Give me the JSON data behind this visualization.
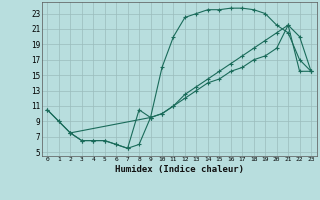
{
  "xlabel": "Humidex (Indice chaleur)",
  "bg_color": "#b8dede",
  "grid_color": "#9bbcbc",
  "line_color": "#1a6b5a",
  "xlim": [
    -0.5,
    23.5
  ],
  "ylim": [
    4.5,
    24.5
  ],
  "xticks": [
    0,
    1,
    2,
    3,
    4,
    5,
    6,
    7,
    8,
    9,
    10,
    11,
    12,
    13,
    14,
    15,
    16,
    17,
    18,
    19,
    20,
    21,
    22,
    23
  ],
  "yticks": [
    5,
    7,
    9,
    11,
    13,
    15,
    17,
    19,
    21,
    23
  ],
  "curve1_x": [
    0,
    1,
    2,
    3,
    4,
    5,
    6,
    7,
    8,
    9,
    10,
    11,
    12,
    13,
    14,
    15,
    16,
    17,
    18,
    19,
    20,
    21,
    22,
    23
  ],
  "curve1_y": [
    10.5,
    9,
    7.5,
    6.5,
    6.5,
    6.5,
    6,
    5.5,
    10.5,
    9.5,
    16,
    20,
    22.5,
    23,
    23.5,
    23.5,
    23.7,
    23.7,
    23.5,
    23,
    21.5,
    20.5,
    17,
    15.5
  ],
  "curve2_x": [
    0,
    1,
    2,
    3,
    4,
    5,
    6,
    7,
    8,
    9,
    10,
    11,
    12,
    13,
    14,
    15,
    16,
    17,
    18,
    19,
    20,
    21,
    22,
    23
  ],
  "curve2_y": [
    10.5,
    9,
    7.5,
    6.5,
    6.5,
    6.5,
    6,
    5.5,
    6,
    9.5,
    10,
    11,
    12.5,
    13.5,
    14.5,
    15.5,
    16.5,
    17.5,
    18.5,
    19.5,
    20.5,
    21.5,
    15.5,
    15.5
  ],
  "curve3_x": [
    2,
    9,
    10,
    11,
    12,
    13,
    14,
    15,
    16,
    17,
    18,
    19,
    20,
    21,
    22,
    23
  ],
  "curve3_y": [
    7.5,
    9.5,
    10,
    11,
    12,
    13,
    14,
    14.5,
    15.5,
    16,
    17,
    17.5,
    18.5,
    21.5,
    20,
    15.5
  ]
}
